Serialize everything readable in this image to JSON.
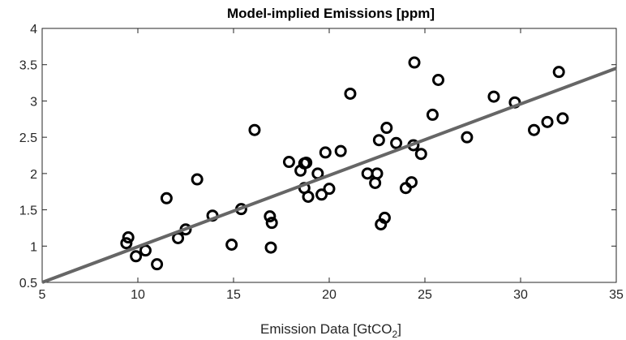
{
  "chart_data": {
    "type": "scatter",
    "title": "Model-implied Emissions [ppm]",
    "xlabel": "Emission Data [GtCO",
    "xlabel_subscript": "2",
    "xlabel_suffix": "]",
    "ylabel": "",
    "xlim": [
      5,
      35
    ],
    "ylim": [
      0.5,
      4
    ],
    "xticks": [
      "5",
      "10",
      "15",
      "20",
      "25",
      "30",
      "35"
    ],
    "yticks": [
      "0.5",
      "1",
      "1.5",
      "2",
      "2.5",
      "3",
      "3.5",
      "4"
    ],
    "grid": false,
    "series": [
      {
        "marker": "circle",
        "color": "#000000",
        "points": [
          [
            9.5,
            1.12
          ],
          [
            9.4,
            1.04
          ],
          [
            9.9,
            0.86
          ],
          [
            10.4,
            0.94
          ],
          [
            11.0,
            0.75
          ],
          [
            11.5,
            1.66
          ],
          [
            12.1,
            1.11
          ],
          [
            12.5,
            1.23
          ],
          [
            13.1,
            1.92
          ],
          [
            13.9,
            1.42
          ],
          [
            14.9,
            1.02
          ],
          [
            15.4,
            1.51
          ],
          [
            16.1,
            2.6
          ],
          [
            16.9,
            1.41
          ],
          [
            17.0,
            1.32
          ],
          [
            16.95,
            0.98
          ],
          [
            17.9,
            2.16
          ],
          [
            18.5,
            2.04
          ],
          [
            18.7,
            2.14
          ],
          [
            18.8,
            2.15
          ],
          [
            18.7,
            1.8
          ],
          [
            18.9,
            1.68
          ],
          [
            19.4,
            2.0
          ],
          [
            19.6,
            1.71
          ],
          [
            19.8,
            2.29
          ],
          [
            20.0,
            1.79
          ],
          [
            20.6,
            2.31
          ],
          [
            21.1,
            3.1
          ],
          [
            22.0,
            2.0
          ],
          [
            22.4,
            1.87
          ],
          [
            22.5,
            2.0
          ],
          [
            22.6,
            2.46
          ],
          [
            22.7,
            1.3
          ],
          [
            22.9,
            1.39
          ],
          [
            23.0,
            2.63
          ],
          [
            23.5,
            2.42
          ],
          [
            24.0,
            1.8
          ],
          [
            24.3,
            1.88
          ],
          [
            24.4,
            2.39
          ],
          [
            24.45,
            3.53
          ],
          [
            24.8,
            2.27
          ],
          [
            25.4,
            2.81
          ],
          [
            25.7,
            3.29
          ],
          [
            27.2,
            2.5
          ],
          [
            28.6,
            3.06
          ],
          [
            29.7,
            2.98
          ],
          [
            30.7,
            2.6
          ],
          [
            31.4,
            2.71
          ],
          [
            32.0,
            3.4
          ],
          [
            32.2,
            2.76
          ]
        ]
      }
    ],
    "fit_line": {
      "color": "#666666",
      "points": [
        [
          5,
          0.5
        ],
        [
          35,
          3.45
        ]
      ]
    }
  }
}
